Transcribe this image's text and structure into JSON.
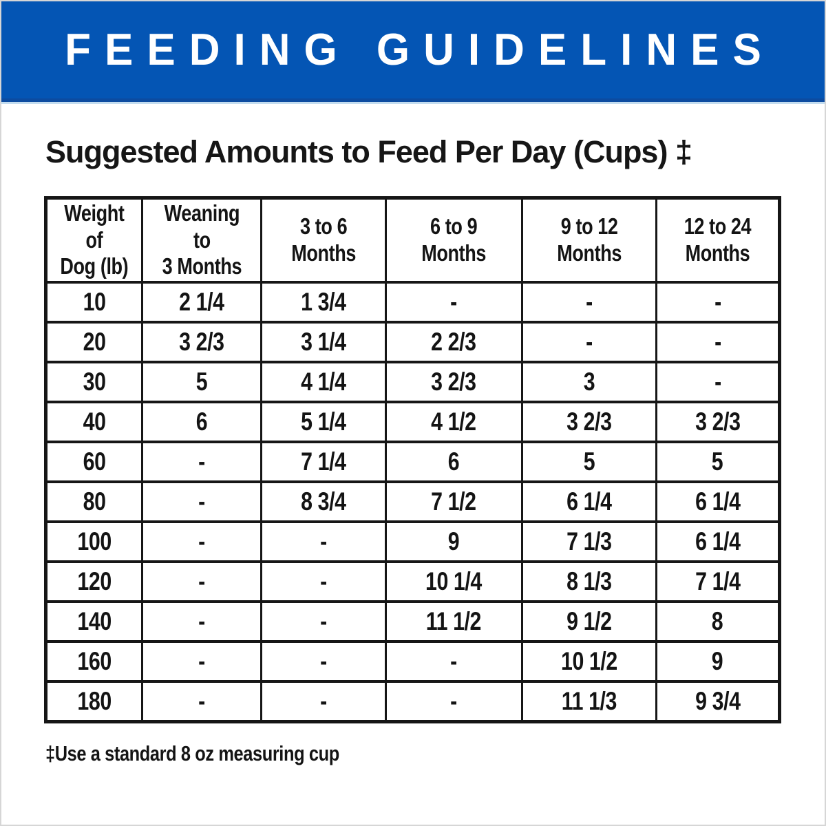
{
  "banner": {
    "title": "FEEDING GUIDELINES",
    "bg_color": "#0455b4",
    "text_color": "#ffffff"
  },
  "subtitle": "Suggested Amounts to Feed Per Day (Cups) ‡",
  "table": {
    "columns": [
      "Weight of\nDog (lb)",
      "Weaning to\n3 Months",
      "3 to 6\nMonths",
      "6 to 9\nMonths",
      "9 to 12\nMonths",
      "12 to 24\nMonths"
    ],
    "rows": [
      [
        "10",
        "2 1/4",
        "1 3/4",
        "-",
        "-",
        "-"
      ],
      [
        "20",
        "3 2/3",
        "3 1/4",
        "2 2/3",
        "-",
        "-"
      ],
      [
        "30",
        "5",
        "4 1/4",
        "3 2/3",
        "3",
        "-"
      ],
      [
        "40",
        "6",
        "5 1/4",
        "4 1/2",
        "3 2/3",
        "3 2/3"
      ],
      [
        "60",
        "-",
        "7 1/4",
        "6",
        "5",
        "5"
      ],
      [
        "80",
        "-",
        "8 3/4",
        "7 1/2",
        "6 1/4",
        "6 1/4"
      ],
      [
        "100",
        "-",
        "-",
        "9",
        "7 1/3",
        "6 1/4"
      ],
      [
        "120",
        "-",
        "-",
        "10 1/4",
        "8 1/3",
        "7 1/4"
      ],
      [
        "140",
        "-",
        "-",
        "11 1/2",
        "9 1/2",
        "8"
      ],
      [
        "160",
        "-",
        "-",
        "-",
        "10 1/2",
        "9"
      ],
      [
        "180",
        "-",
        "-",
        "-",
        "11 1/3",
        "9 3/4"
      ]
    ]
  },
  "footnote": "‡Use a standard 8 oz measuring cup"
}
